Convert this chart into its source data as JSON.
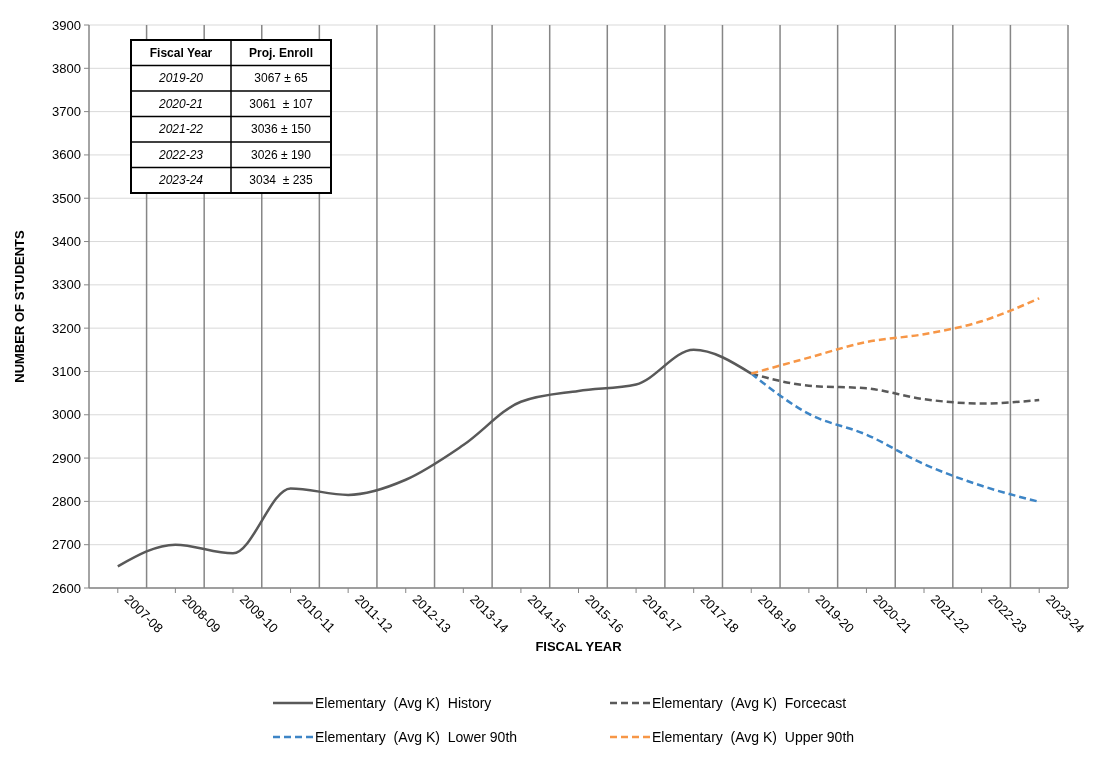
{
  "chart_data": {
    "type": "line",
    "xlabel": "FISCAL YEAR",
    "ylabel": "NUMBER OF STUDENTS",
    "categories": [
      "2007-08",
      "2008-09",
      "2009-10",
      "2010-11",
      "2011-12",
      "2012-13",
      "2013-14",
      "2014-15",
      "2015-16",
      "2016-17",
      "2017-18",
      "2018-19",
      "2019-20",
      "2020-21",
      "2021-22",
      "2022-23",
      "2023-24"
    ],
    "series": [
      {
        "name": "Elementary  (Avg K)  History",
        "color": "#595959",
        "line_style": "solid",
        "values": [
          2650,
          2700,
          2680,
          2830,
          2815,
          2850,
          2930,
          3030,
          3055,
          3070,
          3150,
          3095,
          null,
          null,
          null,
          null,
          null
        ]
      },
      {
        "name": "Elementary  (Avg K)  Forcecast",
        "color": "#595959",
        "line_style": "dashed",
        "values": [
          null,
          null,
          null,
          null,
          null,
          null,
          null,
          null,
          null,
          null,
          null,
          3095,
          3067,
          3061,
          3036,
          3026,
          3034
        ]
      },
      {
        "name": "Elementary  (Avg K)  Lower 90th",
        "color": "#3d85c6",
        "line_style": "dashed",
        "values": [
          null,
          null,
          null,
          null,
          null,
          null,
          null,
          null,
          null,
          null,
          null,
          3095,
          3002,
          2954,
          2886,
          2836,
          2799
        ]
      },
      {
        "name": "Elementary  (Avg K)  Upper 90th",
        "color": "#f79646",
        "line_style": "dashed",
        "values": [
          null,
          null,
          null,
          null,
          null,
          null,
          null,
          null,
          null,
          null,
          null,
          3095,
          3132,
          3168,
          3186,
          3216,
          3269
        ]
      }
    ],
    "ylim": [
      2600,
      3900
    ],
    "yticks": [
      2600,
      2700,
      2800,
      2900,
      3000,
      3100,
      3200,
      3300,
      3400,
      3500,
      3600,
      3700,
      3800,
      3900
    ],
    "grid": true,
    "legend": "bottom",
    "annotations": [
      "Fiscal Year",
      "Proj. Enroll",
      "2019-20",
      "3067 ± 65",
      "2020-21",
      "3061  ± 107",
      "2021-22",
      "3036 ± 150",
      "2022-23",
      "3026 ± 190",
      "2023-24",
      "3034  ± 235"
    ]
  }
}
